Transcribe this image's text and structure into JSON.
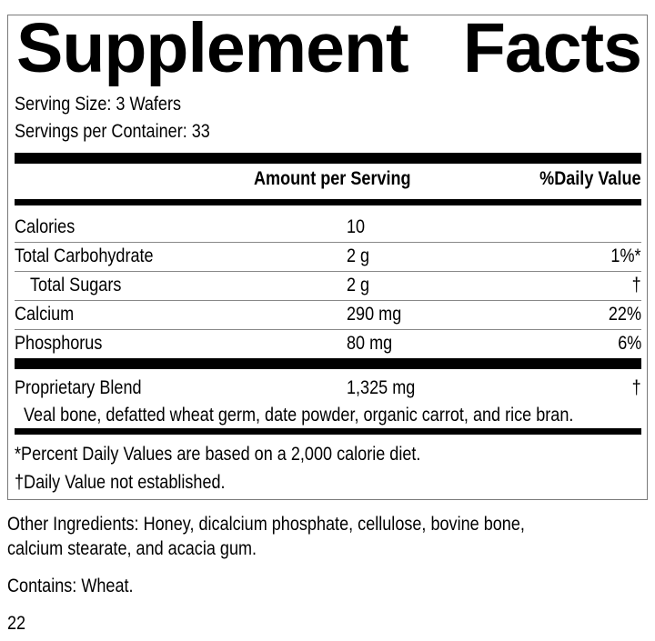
{
  "title": {
    "word1": "Supplement",
    "word2": "Facts"
  },
  "serving_size": "Serving Size: 3 Wafers",
  "servings_per_container": "Servings per Container: 33",
  "header": {
    "amount": "Amount per Serving",
    "dv": "%Daily Value"
  },
  "rows": [
    {
      "label": "Calories",
      "amount": "10",
      "dv": ""
    },
    {
      "label": "Total Carbohydrate",
      "amount": "2 g",
      "dv": "1%*"
    },
    {
      "label": "Total Sugars",
      "amount": "2 g",
      "dv": "†"
    },
    {
      "label": "Calcium",
      "amount": "290 mg",
      "dv": "22%"
    },
    {
      "label": "Phosphorus",
      "amount": "80 mg",
      "dv": "6%"
    }
  ],
  "blend": {
    "label": "Proprietary Blend",
    "amount": "1,325 mg",
    "dv": "†",
    "ingredients": "Veal bone, defatted wheat germ, date powder, organic carrot, and rice bran."
  },
  "footnotes": [
    "*Percent Daily Values are based on a 2,000 calorie diet.",
    "†Daily Value not established."
  ],
  "other_ingredients": [
    "Other Ingredients: Honey, dicalcium phosphate, cellulose, bovine bone,",
    "calcium stearate, and acacia gum."
  ],
  "contains": "Contains: Wheat.",
  "page_number": "22"
}
